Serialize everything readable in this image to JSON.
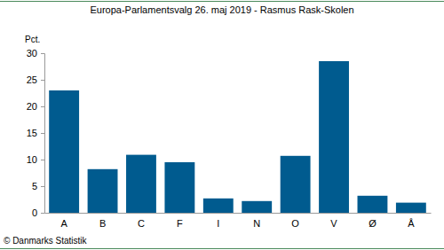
{
  "chart_data": {
    "type": "bar",
    "title": "Europa-Parlamentsvalg 26. maj 2019 - Rasmus Rask-Skolen",
    "y_label": "Pct.",
    "source": "© Danmarks Statistik",
    "categories": [
      "A",
      "B",
      "C",
      "F",
      "I",
      "N",
      "O",
      "V",
      "Ø",
      "Å"
    ],
    "values": [
      23.0,
      8.2,
      10.9,
      9.5,
      2.7,
      2.2,
      10.7,
      28.5,
      3.2,
      1.9
    ],
    "color": "#005b8f",
    "ylim": [
      0,
      30
    ],
    "yticks": [
      0,
      5,
      10,
      15,
      20,
      25,
      30
    ],
    "grid": false
  }
}
